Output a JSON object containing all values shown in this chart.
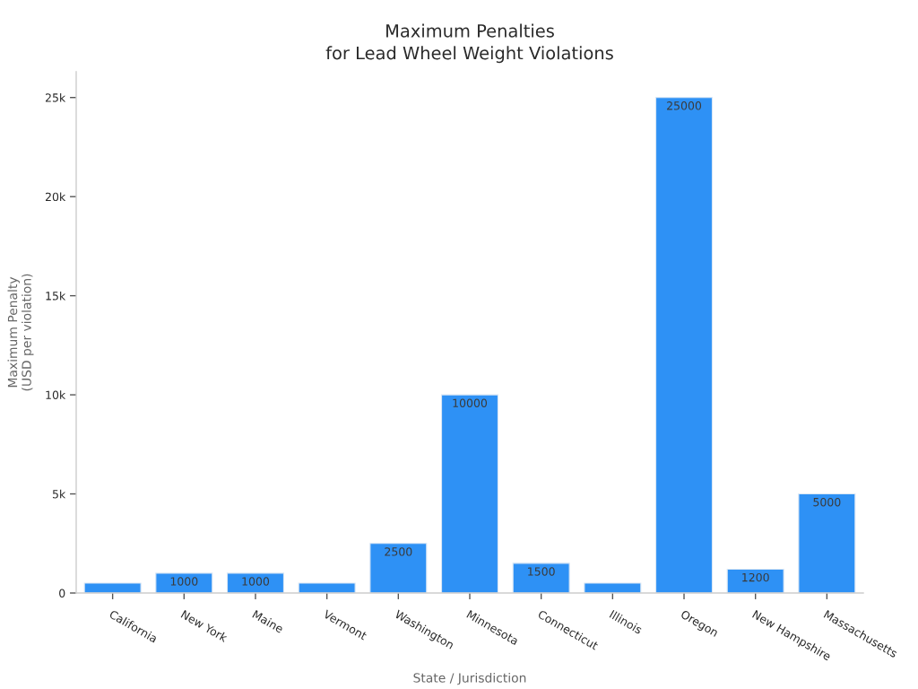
{
  "chart_data": {
    "type": "bar",
    "title": "Maximum Penalties\nfor Lead Wheel Weight Violations",
    "xlabel": "State / Jurisdiction",
    "ylabel": "Maximum Penalty\n(USD per violation)",
    "categories": [
      "California",
      "New York",
      "Maine",
      "Vermont",
      "Washington",
      "Minnesota",
      "Connecticut",
      "Illinois",
      "Oregon",
      "New Hampshire",
      "Massachusetts"
    ],
    "values": [
      500,
      1000,
      1000,
      500,
      2500,
      10000,
      1500,
      500,
      25000,
      1200,
      5000
    ],
    "value_labels": [
      null,
      "1000",
      "1000",
      null,
      "2500",
      "10000",
      "1500",
      null,
      "25000",
      "1200",
      "5000"
    ],
    "color": "#2e91f5",
    "ylim": [
      0,
      26300
    ],
    "yticks": [
      0,
      {
        "value": 5000,
        "label": "5k"
      },
      {
        "value": 10000,
        "label": "10k"
      },
      {
        "value": 15000,
        "label": "15k"
      },
      {
        "value": 20000,
        "label": "20k"
      },
      {
        "value": 25000,
        "label": "25k"
      }
    ],
    "grid": false,
    "legend": false
  }
}
